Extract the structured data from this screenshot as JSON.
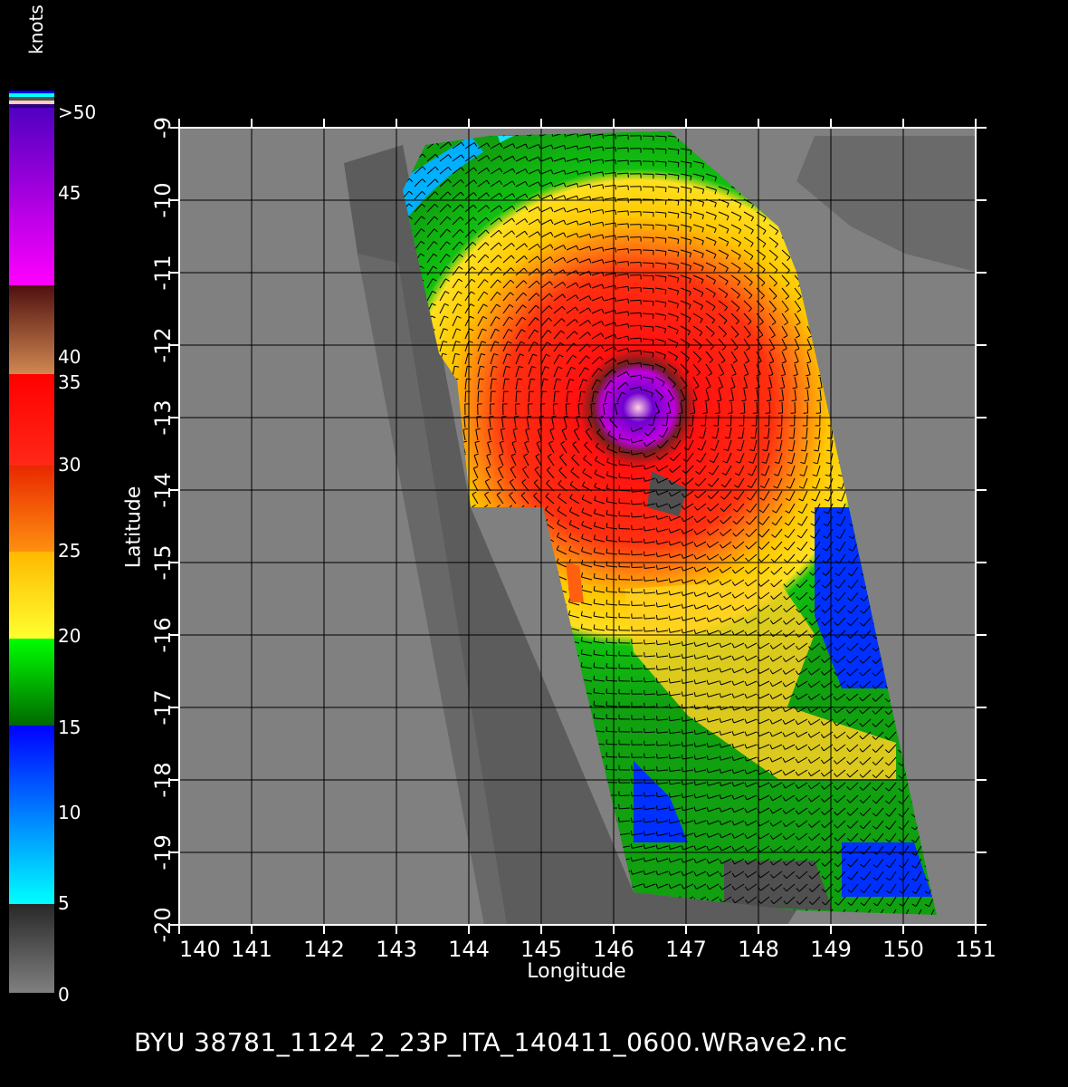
{
  "colorbar": {
    "units": "knots",
    "labels": [
      ">50",
      "45",
      "40",
      "35",
      "30",
      "25",
      "20",
      "15",
      "10",
      "5",
      "0"
    ],
    "colors": {
      "gray": "#808080",
      "cyan": "#00ffff",
      "blue": "#0000ff",
      "green": "#00ff00",
      "yellow": "#ffff30",
      "orange": "#ff8000",
      "red": "#ff0000",
      "brown": "#c8804c",
      "magenta": "#ff00ff",
      "purple": "#5000c0"
    }
  },
  "chart_data": {
    "type": "heatmap",
    "description_visible": "wind speed field with wind vectors",
    "xlabel": "Longitude",
    "ylabel": "Latitude",
    "xlim": [
      140,
      151
    ],
    "ylim": [
      -20,
      -9
    ],
    "xticks": [
      "140",
      "141",
      "142",
      "143",
      "144",
      "145",
      "146",
      "147",
      "148",
      "149",
      "150",
      "151"
    ],
    "yticks": [
      "-9",
      "-10",
      "-11",
      "-12",
      "-13",
      "-14",
      "-15",
      "-16",
      "-17",
      "-18",
      "-19",
      "-20"
    ],
    "grid": true,
    "colorbar_units": "knots",
    "colorbar_range": [
      0,
      50
    ],
    "storm_center": {
      "lon": 146.3,
      "lat": -12.9
    }
  },
  "caption": "BYU  38781_1124_2_23P_ITA_140411_0600.WRave2.nc"
}
